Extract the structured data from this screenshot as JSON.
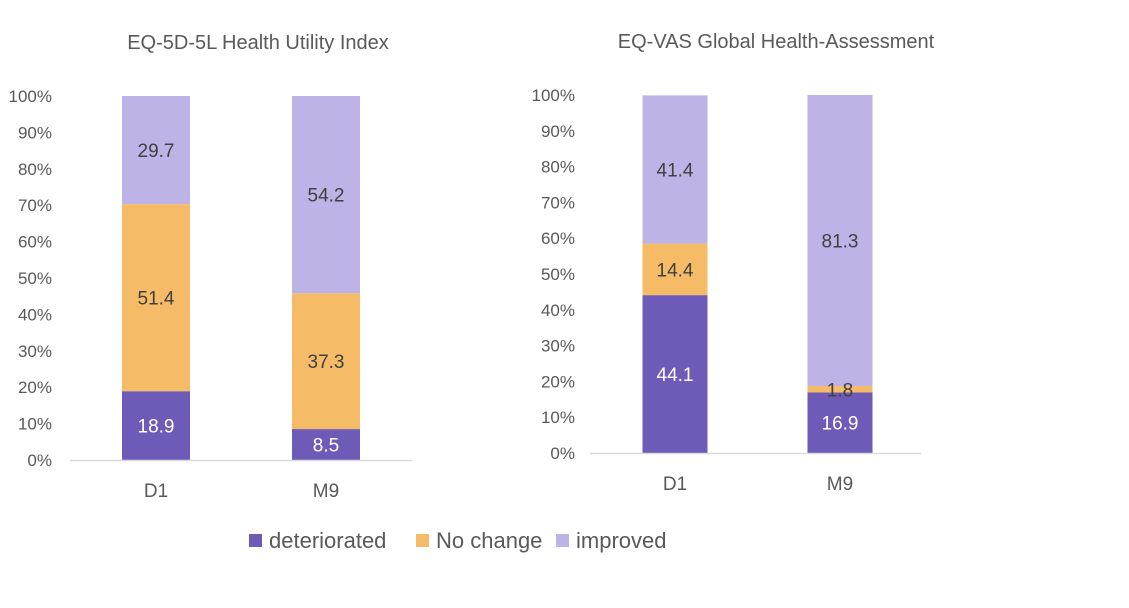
{
  "legend": {
    "position": "bottom",
    "items": [
      {
        "label": "deteriorated",
        "color": "#6e5bb8"
      },
      {
        "label": "No change",
        "color": "#f6bb66"
      },
      {
        "label": "improved",
        "color": "#bdb3e7"
      }
    ]
  },
  "chart_data": [
    {
      "type": "bar",
      "stacked": true,
      "title": "EQ-5D-5L Health Utility Index",
      "xlabel": "",
      "ylabel": "",
      "ylim": [
        0,
        100
      ],
      "yticks": [
        "0%",
        "10%",
        "20%",
        "30%",
        "40%",
        "50%",
        "60%",
        "70%",
        "80%",
        "90%",
        "100%"
      ],
      "categories": [
        "D1",
        "M9"
      ],
      "grid": false,
      "legend": "bottom",
      "series": [
        {
          "name": "deteriorated",
          "color": "#6e5bb8",
          "label_color": "#ffffff",
          "values": [
            18.9,
            8.5
          ]
        },
        {
          "name": "No change",
          "color": "#f6bb66",
          "label_color": "#404040",
          "values": [
            51.4,
            37.3
          ]
        },
        {
          "name": "improved",
          "color": "#bdb3e7",
          "label_color": "#404040",
          "values": [
            29.7,
            54.2
          ]
        }
      ]
    },
    {
      "type": "bar",
      "stacked": true,
      "title": "EQ-VAS Global Health-Assessment",
      "xlabel": "",
      "ylabel": "",
      "ylim": [
        0,
        100
      ],
      "yticks": [
        "0%",
        "10%",
        "20%",
        "30%",
        "40%",
        "50%",
        "60%",
        "70%",
        "80%",
        "90%",
        "100%"
      ],
      "categories": [
        "D1",
        "M9"
      ],
      "grid": false,
      "legend": "bottom",
      "series": [
        {
          "name": "deteriorated",
          "color": "#6e5bb8",
          "label_color": "#ffffff",
          "values": [
            44.1,
            16.9
          ]
        },
        {
          "name": "No change",
          "color": "#f6bb66",
          "label_color": "#404040",
          "values": [
            14.4,
            1.8
          ]
        },
        {
          "name": "improved",
          "color": "#bdb3e7",
          "label_color": "#404040",
          "values": [
            41.4,
            81.3
          ]
        }
      ]
    }
  ]
}
